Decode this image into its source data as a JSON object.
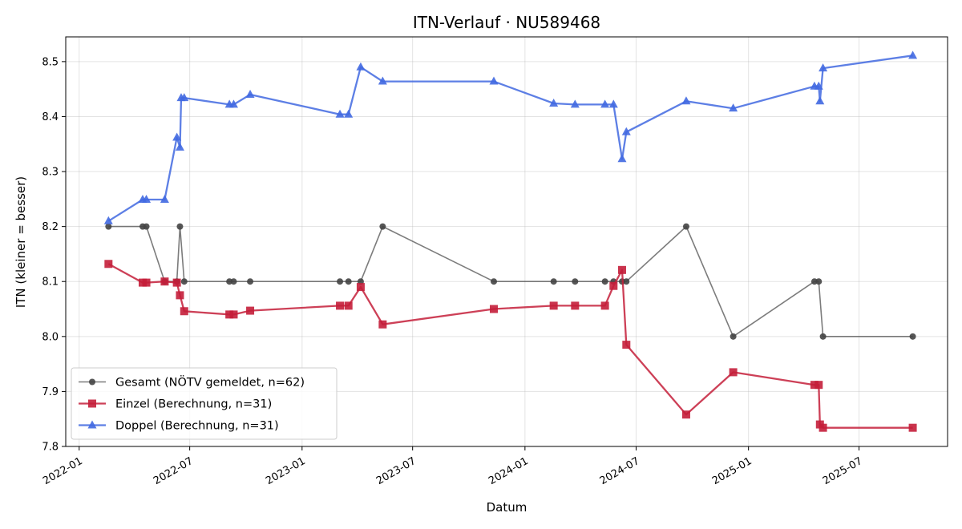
{
  "chart_data": {
    "type": "line",
    "title": "ITN-Verlauf · NU589468",
    "xlabel": "Datum",
    "ylabel": "ITN  (kleiner = besser)",
    "x_axis": {
      "kind": "date",
      "range": [
        "2021-12-10",
        "2025-11-23"
      ],
      "ticks": [
        "2022-01",
        "2022-07",
        "2023-01",
        "2023-07",
        "2024-01",
        "2024-07",
        "2025-01",
        "2025-07"
      ]
    },
    "y_axis": {
      "range": [
        7.8,
        8.545
      ],
      "ticks": [
        "7.8",
        "7.9",
        "8.0",
        "8.1",
        "8.2",
        "8.3",
        "8.4",
        "8.5"
      ]
    },
    "grid": true,
    "legend": {
      "position": "lower-left"
    },
    "series": [
      {
        "name": "Gesamt (NÖTV gemeldet, n=62)",
        "color": "#444444",
        "marker": "circle",
        "points": [
          [
            "2022-02-18",
            8.2
          ],
          [
            "2022-04-15",
            8.2
          ],
          [
            "2022-04-21",
            8.2
          ],
          [
            "2022-05-21",
            8.1
          ],
          [
            "2022-06-10",
            8.1
          ],
          [
            "2022-06-15",
            8.2
          ],
          [
            "2022-06-22",
            8.1
          ],
          [
            "2022-09-04",
            8.1
          ],
          [
            "2022-09-11",
            8.1
          ],
          [
            "2022-10-08",
            8.1
          ],
          [
            "2023-03-04",
            8.1
          ],
          [
            "2023-03-18",
            8.1
          ],
          [
            "2023-04-07",
            8.1
          ],
          [
            "2023-05-13",
            8.2
          ],
          [
            "2023-11-11",
            8.1
          ],
          [
            "2024-02-17",
            8.1
          ],
          [
            "2024-03-23",
            8.1
          ],
          [
            "2024-05-11",
            8.1
          ],
          [
            "2024-05-25",
            8.1
          ],
          [
            "2024-06-08",
            8.1
          ],
          [
            "2024-06-15",
            8.1
          ],
          [
            "2024-09-21",
            8.2
          ],
          [
            "2024-12-07",
            8.0
          ],
          [
            "2025-04-19",
            8.1
          ],
          [
            "2025-04-26",
            8.1
          ],
          [
            "2025-05-03",
            8.0
          ],
          [
            "2025-09-27",
            8.0
          ]
        ]
      },
      {
        "name": "Einzel (Berechnung, n=31)",
        "color": "#c41e3a",
        "marker": "square",
        "points": [
          [
            "2022-02-18",
            8.132
          ],
          [
            "2022-04-15",
            8.098
          ],
          [
            "2022-04-21",
            8.098
          ],
          [
            "2022-05-21",
            8.1
          ],
          [
            "2022-06-10",
            8.098
          ],
          [
            "2022-06-15",
            8.075
          ],
          [
            "2022-06-22",
            8.046
          ],
          [
            "2022-09-04",
            8.04
          ],
          [
            "2022-09-11",
            8.04
          ],
          [
            "2022-10-08",
            8.047
          ],
          [
            "2023-03-04",
            8.056
          ],
          [
            "2023-03-18",
            8.056
          ],
          [
            "2023-04-07",
            8.09
          ],
          [
            "2023-05-13",
            8.022
          ],
          [
            "2023-11-11",
            8.05
          ],
          [
            "2024-02-17",
            8.056
          ],
          [
            "2024-03-23",
            8.056
          ],
          [
            "2024-05-11",
            8.056
          ],
          [
            "2024-05-25",
            8.092
          ],
          [
            "2024-06-08",
            8.121
          ],
          [
            "2024-06-15",
            7.985
          ],
          [
            "2024-09-21",
            7.858
          ],
          [
            "2024-12-07",
            7.935
          ],
          [
            "2025-04-19",
            7.912
          ],
          [
            "2025-04-26",
            7.912
          ],
          [
            "2025-04-28",
            7.84
          ],
          [
            "2025-05-03",
            7.834
          ],
          [
            "2025-09-27",
            7.834
          ]
        ]
      },
      {
        "name": "Doppel (Berechnung, n=31)",
        "color": "#4169e1",
        "marker": "triangle",
        "points": [
          [
            "2022-02-18",
            8.21
          ],
          [
            "2022-04-15",
            8.249
          ],
          [
            "2022-04-21",
            8.249
          ],
          [
            "2022-05-21",
            8.249
          ],
          [
            "2022-06-10",
            8.362
          ],
          [
            "2022-06-15",
            8.344
          ],
          [
            "2022-06-17",
            8.434
          ],
          [
            "2022-06-22",
            8.434
          ],
          [
            "2022-09-04",
            8.422
          ],
          [
            "2022-09-11",
            8.422
          ],
          [
            "2022-10-08",
            8.44
          ],
          [
            "2023-03-04",
            8.404
          ],
          [
            "2023-03-18",
            8.404
          ],
          [
            "2023-04-07",
            8.49
          ],
          [
            "2023-05-13",
            8.464
          ],
          [
            "2023-11-11",
            8.464
          ],
          [
            "2024-02-17",
            8.424
          ],
          [
            "2024-03-23",
            8.422
          ],
          [
            "2024-05-11",
            8.422
          ],
          [
            "2024-05-25",
            8.422
          ],
          [
            "2024-06-08",
            8.323
          ],
          [
            "2024-06-15",
            8.372
          ],
          [
            "2024-09-21",
            8.428
          ],
          [
            "2024-12-07",
            8.415
          ],
          [
            "2025-04-19",
            8.455
          ],
          [
            "2025-04-26",
            8.455
          ],
          [
            "2025-04-28",
            8.428
          ],
          [
            "2025-05-03",
            8.488
          ],
          [
            "2025-09-27",
            8.511
          ]
        ]
      }
    ]
  }
}
